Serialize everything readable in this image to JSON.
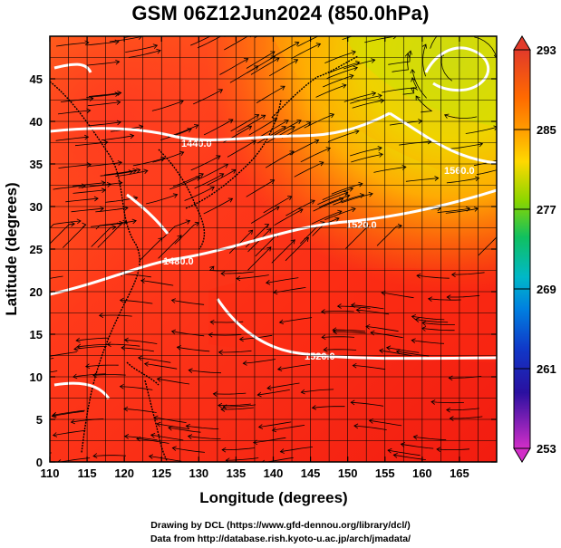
{
  "title": "GSM 06Z12Jun2024 (850.0hPa)",
  "xlabel": "Longitude (degrees)",
  "ylabel": "Latitude  (degrees)",
  "credits": {
    "line1": "Drawing by DCL (https://www.gfd-dennou.org/library/dcl/)",
    "line2": "Data from http://database.rish.kyoto-u.ac.jp/arch/jmadata/"
  },
  "map": {
    "lon_range": [
      110,
      170
    ],
    "lat_range": [
      0,
      50
    ],
    "x_ticks": [
      "110",
      "115",
      "120",
      "125",
      "130",
      "135",
      "140",
      "145",
      "150",
      "155",
      "160",
      "165"
    ],
    "y_ticks": [
      "0",
      "5",
      "10",
      "15",
      "20",
      "25",
      "30",
      "35",
      "40",
      "45"
    ],
    "grid": true,
    "shading": "temperature (K)",
    "contours": "geopotential height (m), white",
    "vectors": "wind streamlines, black"
  },
  "contour_labels": [
    "1440.0",
    "1480.0",
    "1520.0",
    "1520.0",
    "1560.0"
  ],
  "colorbar": {
    "tick_labels": [
      "293",
      "285",
      "277",
      "269",
      "261",
      "253"
    ],
    "colors": {
      "293": "#e23a2a",
      "285": "#ff8c00",
      "277": "#7fd000",
      "269": "#00b0d8",
      "261": "#1d3fc8",
      "253": "#d22ec8"
    }
  }
}
